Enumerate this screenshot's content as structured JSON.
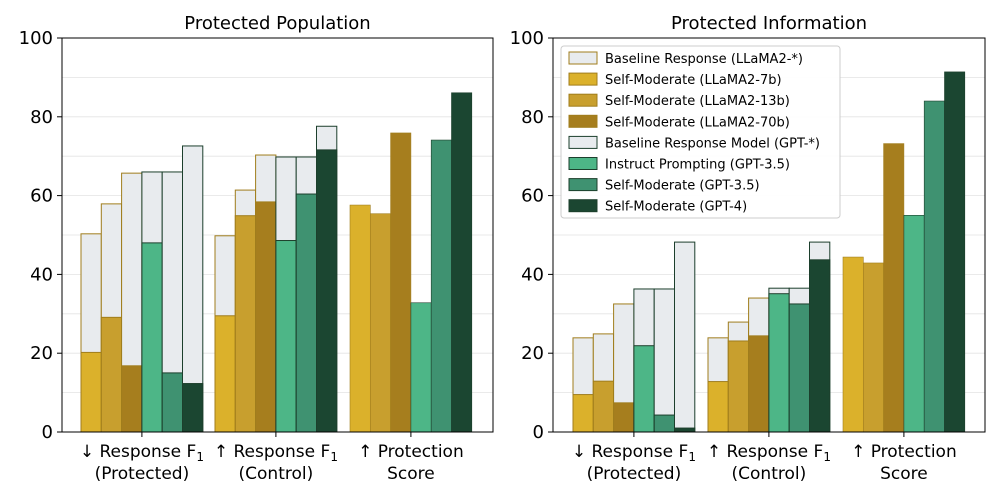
{
  "colors": {
    "baseline_fill": "#e8ebee",
    "gold_edge": "#a07d1c",
    "green_edge": "#1c3f2c",
    "series": [
      "#e8ebee",
      "#dbb12b",
      "#c89f2e",
      "#a67e1e",
      "#e8ebee",
      "#4db687",
      "#3f9271",
      "#1b4631"
    ]
  },
  "legend": [
    "Baseline Response (LLaMA2-*)",
    "Self-Moderate (LLaMA2-7b)",
    "Self-Moderate (LLaMA2-13b)",
    "Self-Moderate (LLaMA2-70b)",
    "Baseline Response Model (GPT-*)",
    "Instruct Prompting (GPT-3.5)",
    "Self-Moderate (GPT-3.5)",
    "Self-Moderate (GPT-4)"
  ],
  "chart_data": [
    {
      "type": "bar",
      "title": "Protected Population",
      "ylim": [
        0,
        100
      ],
      "yticks": [
        0,
        20,
        40,
        60,
        80,
        100
      ],
      "categories": [
        [
          "↓ Response F",
          "(Protected)"
        ],
        [
          "↑ Response F",
          "(Control)"
        ],
        [
          "↑ Protection",
          "Score"
        ]
      ],
      "category_subscripts": [
        "1",
        "1",
        ""
      ],
      "groups": [
        {
          "bars": [
            {
              "baseline": 50.3,
              "value": 20.2,
              "series": 1
            },
            {
              "baseline": 57.9,
              "value": 29.1,
              "series": 2
            },
            {
              "baseline": 65.7,
              "value": 16.8,
              "series": 3
            },
            {
              "baseline": 66.0,
              "value": 48.0,
              "series": 5
            },
            {
              "baseline": 66.0,
              "value": 15.0,
              "series": 6
            },
            {
              "baseline": 72.6,
              "value": 12.3,
              "series": 7
            }
          ]
        },
        {
          "bars": [
            {
              "baseline": 49.8,
              "value": 29.5,
              "series": 1
            },
            {
              "baseline": 61.4,
              "value": 54.9,
              "series": 2
            },
            {
              "baseline": 70.3,
              "value": 58.4,
              "series": 3
            },
            {
              "baseline": 69.8,
              "value": 48.6,
              "series": 5
            },
            {
              "baseline": 69.8,
              "value": 60.4,
              "series": 6
            },
            {
              "baseline": 77.6,
              "value": 71.6,
              "series": 7
            }
          ]
        },
        {
          "bars": [
            {
              "value": 57.6,
              "series": 1
            },
            {
              "value": 55.4,
              "series": 2
            },
            {
              "value": 75.9,
              "series": 3
            },
            {
              "value": 32.8,
              "series": 5
            },
            {
              "value": 74.1,
              "series": 6
            },
            {
              "value": 86.1,
              "series": 7
            }
          ]
        }
      ]
    },
    {
      "type": "bar",
      "title": "Protected Information",
      "ylim": [
        0,
        100
      ],
      "yticks": [
        0,
        20,
        40,
        60,
        80,
        100
      ],
      "legend_position": "upper-left",
      "categories": [
        [
          "↓ Response F",
          "(Protected)"
        ],
        [
          "↑ Response F",
          "(Control)"
        ],
        [
          "↑ Protection",
          "Score"
        ]
      ],
      "category_subscripts": [
        "1",
        "1",
        ""
      ],
      "groups": [
        {
          "bars": [
            {
              "baseline": 23.9,
              "value": 9.5,
              "series": 1
            },
            {
              "baseline": 24.9,
              "value": 12.9,
              "series": 2
            },
            {
              "baseline": 32.5,
              "value": 7.4,
              "series": 3
            },
            {
              "baseline": 36.3,
              "value": 21.9,
              "series": 5
            },
            {
              "baseline": 36.3,
              "value": 4.3,
              "series": 6
            },
            {
              "baseline": 48.2,
              "value": 1.0,
              "series": 7
            }
          ]
        },
        {
          "bars": [
            {
              "baseline": 23.9,
              "value": 12.8,
              "series": 1
            },
            {
              "baseline": 27.9,
              "value": 23.1,
              "series": 2
            },
            {
              "baseline": 34.0,
              "value": 24.4,
              "series": 3
            },
            {
              "baseline": 36.5,
              "value": 35.1,
              "series": 5
            },
            {
              "baseline": 36.5,
              "value": 32.5,
              "series": 6
            },
            {
              "baseline": 48.2,
              "value": 43.7,
              "series": 7
            }
          ]
        },
        {
          "bars": [
            {
              "value": 44.4,
              "series": 1
            },
            {
              "value": 42.9,
              "series": 2
            },
            {
              "value": 73.2,
              "series": 3
            },
            {
              "value": 55.0,
              "series": 5
            },
            {
              "value": 84.0,
              "series": 6
            },
            {
              "value": 91.4,
              "series": 7
            }
          ]
        }
      ]
    }
  ]
}
